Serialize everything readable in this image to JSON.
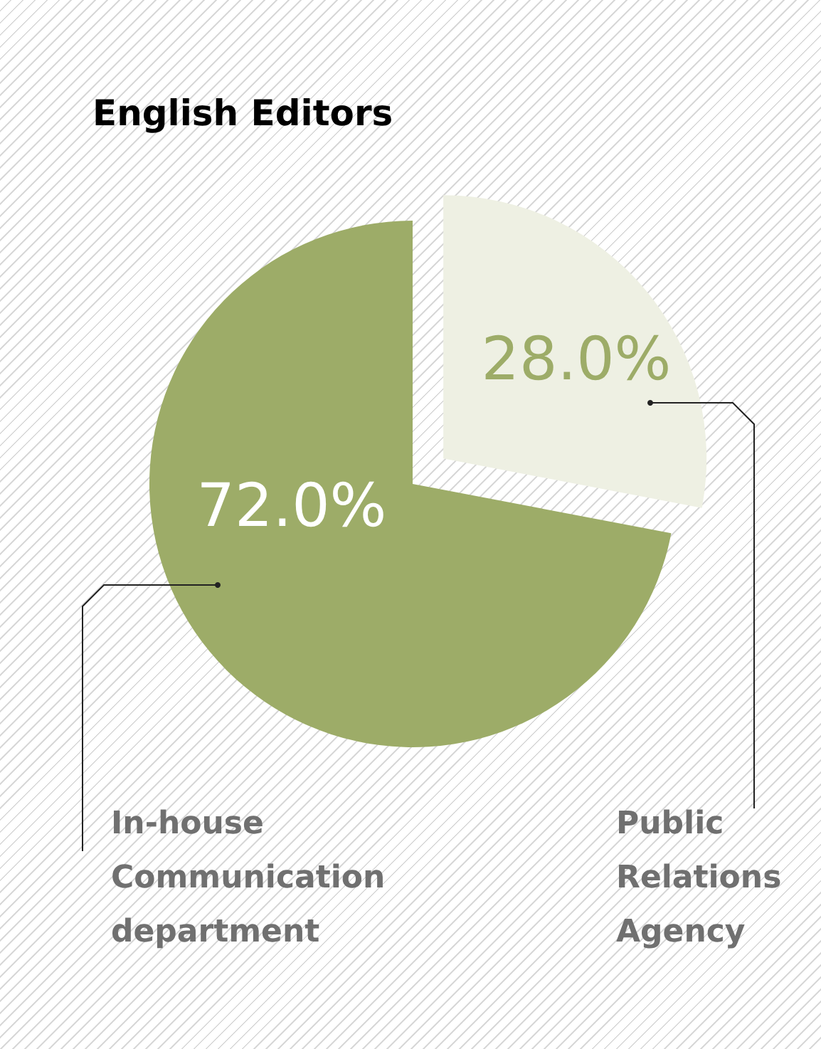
{
  "chart_data": {
    "type": "pie",
    "title": "English Editors",
    "categories": [
      "In-house Communication department",
      "Public Relations Agency"
    ],
    "values": [
      72.0,
      28.0
    ],
    "colors": [
      "#9dac68",
      "#eef0e3"
    ],
    "value_labels": [
      "72.0%",
      "28.0%"
    ],
    "legend": false
  }
}
